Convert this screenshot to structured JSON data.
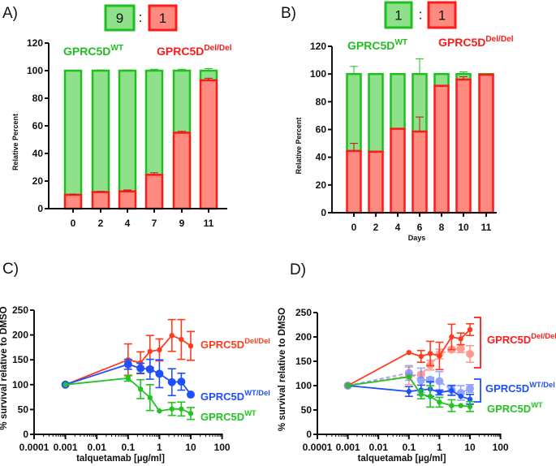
{
  "colors": {
    "wt_fill": "#8ee08a",
    "wt_stroke": "#1fbf1f",
    "del_fill": "#ff8a80",
    "del_stroke": "#ff1a1a",
    "line_red": "#ff3b1f",
    "line_red_light": "#ff7a6a",
    "line_blue": "#1f4fff",
    "line_blue_light": "#6f88ff",
    "line_green": "#22c422"
  },
  "chart_data": [
    {
      "panel": "A)",
      "type": "bar",
      "stacked": true,
      "ratio": {
        "wt": "9",
        "sep": ":",
        "del": "1"
      },
      "legend": [
        {
          "base": "GPRC5D",
          "sup": "WT",
          "color": "#1fbf1f"
        },
        {
          "base": "GPRC5D",
          "sup": "Del/Del",
          "color": "#ff1a1a"
        }
      ],
      "ylabel": "Relative Percent",
      "xlabel": "",
      "ylim": [
        0,
        120
      ],
      "yticks": [
        0,
        20,
        40,
        60,
        80,
        100,
        120
      ],
      "categories": [
        "0",
        "2",
        "4",
        "7",
        "9",
        "11"
      ],
      "series": [
        {
          "name": "GPRC5D Del/Del",
          "values": [
            10,
            12,
            12.5,
            24.5,
            55,
            93
          ],
          "err": [
            0.5,
            0.5,
            1,
            1.5,
            1,
            1.5
          ]
        },
        {
          "name": "GPRC5D WT",
          "values": [
            90,
            88,
            87.5,
            75.5,
            45,
            7
          ],
          "err": [
            0.3,
            0.5,
            0.5,
            1,
            1,
            1.5
          ]
        }
      ]
    },
    {
      "panel": "B)",
      "type": "bar",
      "stacked": true,
      "ratio": {
        "wt": "1",
        "sep": ":",
        "del": "1"
      },
      "legend": [
        {
          "base": "GPRC5D",
          "sup": "WT",
          "color": "#1fbf1f"
        },
        {
          "base": "GPRC5D",
          "sup": "Del/Del",
          "color": "#ff1a1a"
        }
      ],
      "ylabel": "Relative Percent",
      "xlabel": "Days",
      "ylim": [
        0,
        120
      ],
      "yticks": [
        0,
        20,
        40,
        60,
        80,
        100,
        120
      ],
      "categories": [
        "0",
        "2",
        "4",
        "6",
        "8",
        "10",
        "11"
      ],
      "series": [
        {
          "name": "GPRC5D Del/Del",
          "values": [
            44.5,
            44,
            60.5,
            58.5,
            91.5,
            96,
            99.5
          ],
          "err": [
            5.5,
            0,
            0,
            10.5,
            0,
            2,
            0
          ]
        },
        {
          "name": "GPRC5D WT",
          "values": [
            55.5,
            56,
            39.5,
            41.5,
            8.5,
            4,
            0.5
          ],
          "err": [
            5.5,
            0,
            0.3,
            11,
            0,
            1.5,
            0
          ]
        }
      ]
    },
    {
      "panel": "C)",
      "type": "line",
      "xscale": "log",
      "xlabel": "talquetamab [µg/ml]",
      "ylabel": "% survival relative to DMSO",
      "xlim": [
        0.0001,
        100
      ],
      "ylim": [
        0,
        250
      ],
      "xticks": [
        "0.0001",
        "0.001",
        "0.01",
        "0.1",
        "1",
        "10",
        "100"
      ],
      "yticks": [
        0,
        50,
        100,
        150,
        200,
        250
      ],
      "x": [
        0.001,
        0.1,
        0.25,
        0.5,
        1,
        2.5,
        5,
        10
      ],
      "series": [
        {
          "label": {
            "base": "GPRC5D",
            "sup": "Del/Del"
          },
          "color": "#ff3b1f",
          "marker": "small",
          "dashed": false,
          "values": [
            100,
            150,
            144,
            167,
            170,
            199,
            191,
            178
          ],
          "err": [
            0,
            32,
            22,
            32,
            22,
            32,
            40,
            29
          ]
        },
        {
          "label": {
            "base": "GPRC5D",
            "sup": "WT/Del"
          },
          "color": "#1f4fff",
          "marker": "large",
          "dashed": false,
          "values": [
            100,
            141,
            133,
            131,
            122,
            105,
            106,
            80
          ],
          "err": [
            0,
            10,
            10,
            20,
            28,
            27,
            17,
            0
          ]
        },
        {
          "label": {
            "base": "GPRC5D",
            "sup": "WT"
          },
          "color": "#22c422",
          "marker": "small",
          "dashed": false,
          "values": [
            100,
            113,
            91,
            74,
            47,
            51,
            51,
            42
          ],
          "err": [
            0,
            6,
            19,
            26,
            0,
            13,
            14,
            12
          ]
        }
      ]
    },
    {
      "panel": "D)",
      "type": "line",
      "xscale": "log",
      "xlabel": "talquetamab [µg/ml]",
      "ylabel": "% survival relative to DMSO",
      "xlim": [
        0.0001,
        100
      ],
      "ylim": [
        0,
        250
      ],
      "xticks": [
        "0.0001",
        "0.001",
        "0.01",
        "0.1",
        "1",
        "10",
        "100"
      ],
      "yticks": [
        0,
        50,
        100,
        150,
        200,
        250
      ],
      "x": [
        0.001,
        0.1,
        0.25,
        0.5,
        1,
        2.5,
        5,
        10
      ],
      "groups": [
        {
          "label": {
            "base": "GPRC5D",
            "sup": "Del/Del"
          },
          "color": "#ff1a1a",
          "bracket": true
        },
        {
          "label": {
            "base": "GPRC5D",
            "sup": "WT/Del"
          },
          "color": "#1f4fff",
          "bracket": true
        },
        {
          "label": {
            "base": "GPRC5D",
            "sup": "WT"
          },
          "color": "#22c422",
          "bracket": false
        }
      ],
      "series": [
        {
          "group": 0,
          "color": "#ff7a6a",
          "marker": "large",
          "dashed": true,
          "values": [
            100,
            120,
            123,
            142,
            165,
            174,
            176,
            165
          ],
          "err": [
            0,
            18,
            0,
            10,
            10,
            5,
            8,
            17
          ]
        },
        {
          "group": 1,
          "color": "#6f88ff",
          "marker": "large",
          "dashed": true,
          "values": [
            100,
            126,
            111,
            112,
            109,
            91,
            85,
            94
          ],
          "err": [
            0,
            15,
            25,
            5,
            20,
            10,
            15,
            8
          ]
        },
        {
          "group": 0,
          "color": "#ff3b1f",
          "marker": "small",
          "dashed": false,
          "values": [
            100,
            168,
            160,
            166,
            161,
            200,
            196,
            215
          ],
          "err": [
            0,
            0,
            12,
            25,
            28,
            26,
            12,
            12
          ]
        },
        {
          "group": 1,
          "color": "#1f4fff",
          "marker": "small",
          "dashed": false,
          "values": [
            100,
            88,
            91,
            93,
            86,
            90,
            78,
            72
          ],
          "err": [
            0,
            10,
            10,
            15,
            5,
            10,
            0,
            10
          ]
        },
        {
          "group": 2,
          "color": "#22c422",
          "marker": "small",
          "dashed": false,
          "values": [
            100,
            118,
            82,
            78,
            66,
            59,
            59,
            57
          ],
          "err": [
            0,
            0,
            9,
            22,
            10,
            12,
            0,
            10
          ]
        }
      ]
    }
  ]
}
